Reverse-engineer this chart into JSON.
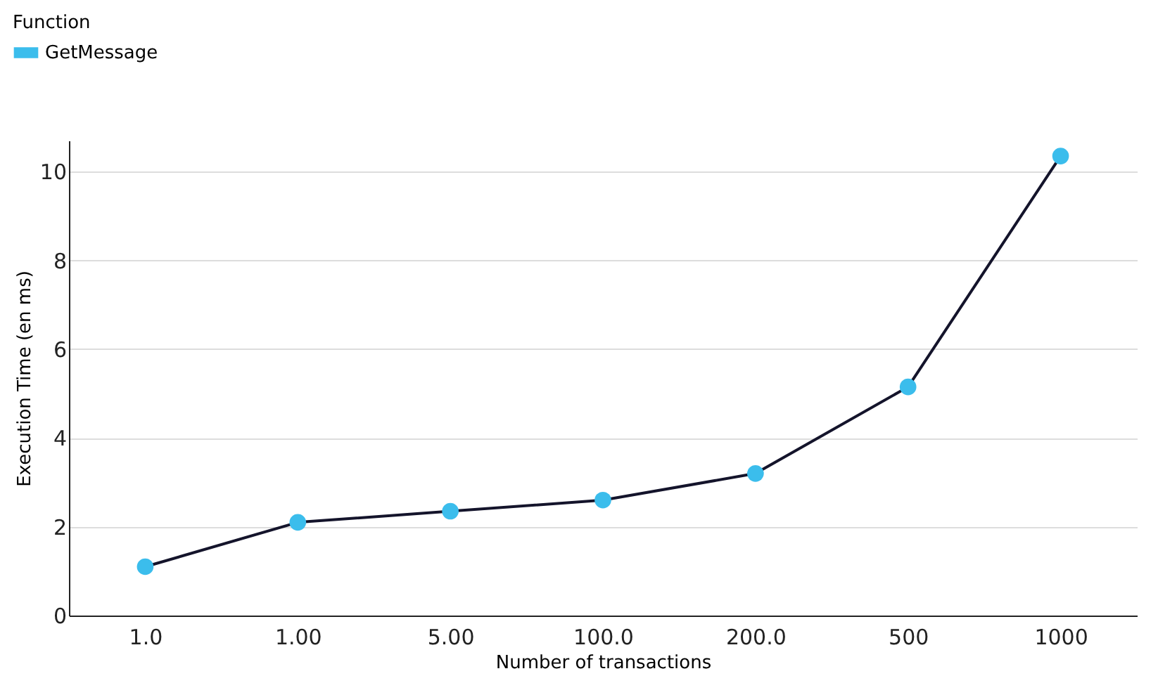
{
  "chart_data": {
    "type": "line",
    "xlabel": "Number of transactions",
    "ylabel": "Execution Time (en ms)",
    "legend_title": "Function",
    "categories": [
      "1.0",
      "1.00",
      "5.00",
      "100.0",
      "200.0",
      "500",
      "1000"
    ],
    "series": [
      {
        "name": "GetMessage",
        "color": "#3bbdec",
        "values": [
          1.1,
          2.1,
          2.35,
          2.6,
          3.2,
          5.15,
          10.35
        ]
      }
    ],
    "ylim": [
      0,
      10.7
    ],
    "yticks": [
      0,
      2,
      4,
      6,
      8,
      10
    ],
    "grid": "y",
    "legend": "top left",
    "marker": "circle",
    "line_style": "solid"
  }
}
